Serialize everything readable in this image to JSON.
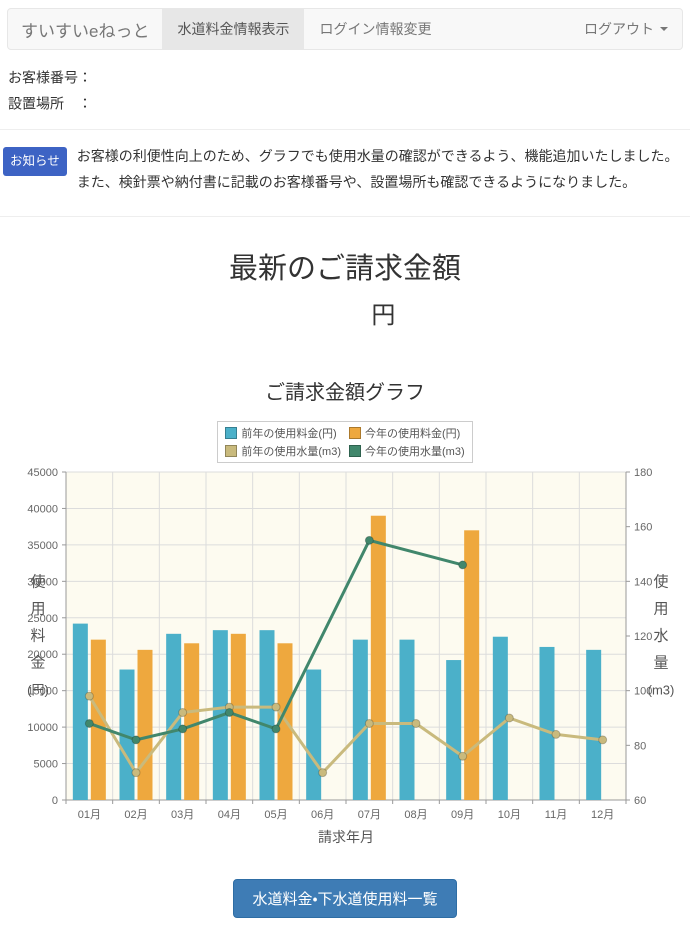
{
  "header": {
    "brand": "すいすいeねっと",
    "tabs": [
      {
        "label": "水道料金情報表示",
        "active": true
      },
      {
        "label": "ログイン情報変更",
        "active": false
      }
    ],
    "logout_label": "ログアウト"
  },
  "customer": {
    "number_label": "お客様番号：",
    "number_value": "",
    "location_label": "設置場所　：",
    "location_value": ""
  },
  "notice": {
    "badge": "お知らせ",
    "line1": "お客様の利便性向上のため、グラフでも使用水量の確認ができるよう、機能追加いたしました。",
    "line2": "また、検針票や納付書に記載のお客様番号や、設置場所も確認できるようになりました。"
  },
  "billing": {
    "title": "最新のご請求金額",
    "amount_value": "",
    "amount_unit": "円",
    "chart_title": "ご請求金額グラフ"
  },
  "footer": {
    "button_label": "水道料金・下水道使用料一覧"
  },
  "chart_data": {
    "type": "bar",
    "categories": [
      "01月",
      "02月",
      "03月",
      "04月",
      "05月",
      "06月",
      "07月",
      "08月",
      "09月",
      "10月",
      "11月",
      "12月"
    ],
    "xlabel": "請求年月",
    "ylabel_left": "使用料金(円)",
    "ylabel_right": "使用水量(m3)",
    "ylim_left": [
      0,
      45000
    ],
    "ytick_step_left": 5000,
    "ylim_right": [
      60,
      180
    ],
    "ytick_step_right": 20,
    "grid": true,
    "legend_position": "top",
    "series": [
      {
        "name": "前年の使用料金(円)",
        "type": "bar",
        "axis": "left",
        "color": "#4bb0c9",
        "values": [
          24200,
          17900,
          22800,
          23300,
          23300,
          17900,
          22000,
          22000,
          19200,
          22400,
          21000,
          20600
        ]
      },
      {
        "name": "今年の使用料金(円)",
        "type": "bar",
        "axis": "left",
        "color": "#eea83e",
        "values": [
          22000,
          20600,
          21500,
          22800,
          21500,
          null,
          39000,
          null,
          37000,
          null,
          null,
          null
        ]
      },
      {
        "name": "前年の使用水量(m3)",
        "type": "line",
        "axis": "right",
        "color": "#c9ba7d",
        "values": [
          98,
          70,
          92,
          94,
          94,
          70,
          88,
          88,
          76,
          90,
          84,
          82
        ]
      },
      {
        "name": "今年の使用水量(m3)",
        "type": "line",
        "axis": "right",
        "color": "#41876c",
        "values": [
          88,
          82,
          86,
          92,
          86,
          null,
          155,
          null,
          146,
          null,
          null,
          null
        ]
      }
    ],
    "colors": {
      "plot_bg": "#fdfbf0",
      "grid": "#dcdcdc",
      "axis": "#999999",
      "tick_text": "#666666",
      "label_text": "#555555"
    }
  }
}
